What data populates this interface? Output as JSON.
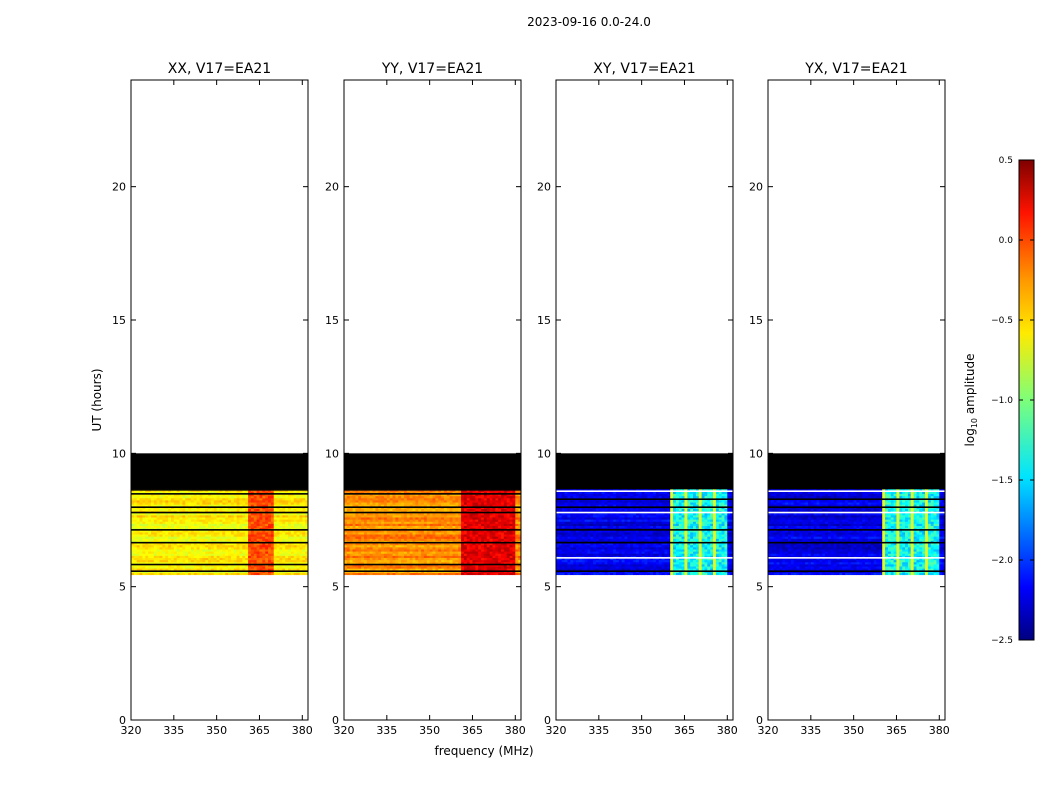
{
  "figure": {
    "suptitle": "2023-09-16 0.0-24.0",
    "xlabel": "frequency (MHz)",
    "ylabel": "UT (hours)"
  },
  "colorbar": {
    "label_main": "log",
    "label_sub": "10",
    "label_tail": " amplitude",
    "cmap": "jet",
    "vmin": -2.5,
    "vmax": 0.5,
    "ticks": [
      "0.5",
      "0.0",
      "−0.5",
      "−1.0",
      "−1.5",
      "−2.0",
      "−2.5"
    ],
    "tick_values": [
      0.5,
      0.0,
      -0.5,
      -1.0,
      -1.5,
      -2.0,
      -2.5
    ]
  },
  "chart_data": [
    {
      "type": "heatmap",
      "title": "XX, V17=EA21",
      "xlim": [
        320,
        382
      ],
      "ylim": [
        0,
        24
      ],
      "xticks": [
        "320",
        "335",
        "350",
        "365",
        "380"
      ],
      "xtick_values": [
        320,
        335,
        350,
        365,
        380
      ],
      "yticks": [
        "0",
        "5",
        "10",
        "15",
        "20"
      ],
      "ytick_values": [
        0,
        5,
        10,
        15,
        20
      ],
      "data_extent_hours": [
        5.45,
        10.0
      ],
      "valid_data_hours": [
        5.45,
        8.65
      ],
      "typical_log10_amplitude": -0.6,
      "peak_log10_amplitude": 0.05,
      "peak_freq_range_mhz": [
        361,
        370
      ]
    },
    {
      "type": "heatmap",
      "title": "YY, V17=EA21",
      "xlim": [
        320,
        382
      ],
      "ylim": [
        0,
        24
      ],
      "xticks": [
        "320",
        "335",
        "350",
        "365",
        "380"
      ],
      "xtick_values": [
        320,
        335,
        350,
        365,
        380
      ],
      "yticks": [
        "0",
        "5",
        "10",
        "15",
        "20"
      ],
      "ytick_values": [
        0,
        5,
        10,
        15,
        20
      ],
      "data_extent_hours": [
        5.45,
        10.0
      ],
      "valid_data_hours": [
        5.45,
        8.65
      ],
      "typical_log10_amplitude": -0.3,
      "peak_log10_amplitude": 0.35,
      "peak_freq_range_mhz": [
        361,
        380
      ]
    },
    {
      "type": "heatmap",
      "title": "XY, V17=EA21",
      "xlim": [
        320,
        382
      ],
      "ylim": [
        0,
        24
      ],
      "xticks": [
        "320",
        "335",
        "350",
        "365",
        "380"
      ],
      "xtick_values": [
        320,
        335,
        350,
        365,
        380
      ],
      "yticks": [
        "0",
        "5",
        "10",
        "15",
        "20"
      ],
      "ytick_values": [
        0,
        5,
        10,
        15,
        20
      ],
      "data_extent_hours": [
        5.45,
        10.0
      ],
      "valid_data_hours": [
        5.45,
        8.65
      ],
      "typical_log10_amplitude": -2.2,
      "peak_log10_amplitude": -1.1,
      "peak_freq_range_mhz": [
        360,
        380
      ]
    },
    {
      "type": "heatmap",
      "title": "YX, V17=EA21",
      "xlim": [
        320,
        382
      ],
      "ylim": [
        0,
        24
      ],
      "xticks": [
        "320",
        "335",
        "350",
        "365",
        "380"
      ],
      "xtick_values": [
        320,
        335,
        350,
        365,
        380
      ],
      "yticks": [
        "0",
        "5",
        "10",
        "15",
        "20"
      ],
      "ytick_values": [
        0,
        5,
        10,
        15,
        20
      ],
      "data_extent_hours": [
        5.45,
        10.0
      ],
      "valid_data_hours": [
        5.45,
        8.65
      ],
      "typical_log10_amplitude": -2.2,
      "peak_log10_amplitude": -1.1,
      "peak_freq_range_mhz": [
        360,
        380
      ]
    }
  ]
}
